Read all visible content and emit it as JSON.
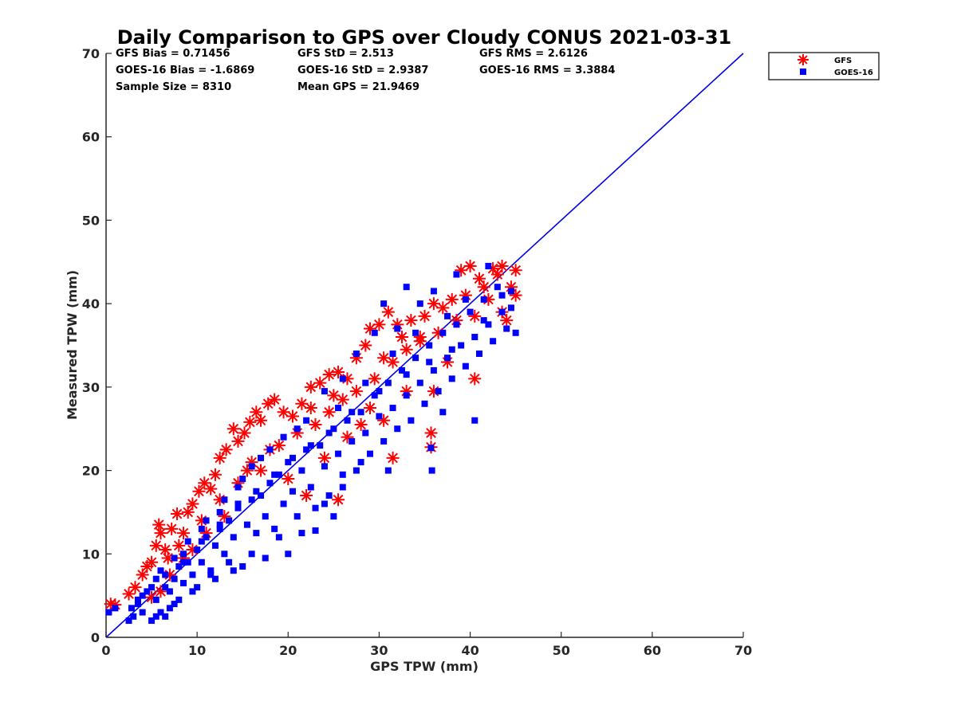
{
  "chart_data": {
    "type": "scatter",
    "title": "Daily Comparison to GPS over Cloudy CONUS 2021-03-31",
    "xlabel": "GPS TPW (mm)",
    "ylabel": "Measured TPW (mm)",
    "xlim": [
      0,
      70
    ],
    "ylim": [
      0,
      70
    ],
    "xticks": [
      "0",
      "10",
      "20",
      "30",
      "40",
      "50",
      "60",
      "70"
    ],
    "yticks": [
      "0",
      "10",
      "20",
      "30",
      "40",
      "50",
      "60",
      "70"
    ],
    "grid": false,
    "legend_position": "outside top-right",
    "reference_line": {
      "x": [
        0,
        70
      ],
      "y": [
        0,
        70
      ],
      "color": "#0000e6"
    },
    "stats": [
      {
        "text": "GFS Bias = 0.71456"
      },
      {
        "text": "GFS StD = 2.513"
      },
      {
        "text": "GFS RMS = 2.6126"
      },
      {
        "text": "GOES-16 Bias = -1.6869"
      },
      {
        "text": "GOES-16 StD = 2.9387"
      },
      {
        "text": "GOES-16 RMS = 3.3884"
      },
      {
        "text": "Sample Size = 8310"
      },
      {
        "text": "Mean GPS = 21.9469"
      }
    ],
    "series": [
      {
        "name": "GFS",
        "marker": "asterisk",
        "color": "#ff0000",
        "points": [
          [
            0.5,
            4.0
          ],
          [
            1.0,
            3.9
          ],
          [
            2.5,
            5.2
          ],
          [
            3.2,
            6.0
          ],
          [
            4.0,
            7.5
          ],
          [
            4.5,
            8.5
          ],
          [
            5.0,
            9.0
          ],
          [
            5.5,
            11.0
          ],
          [
            5.8,
            13.5
          ],
          [
            6.0,
            12.5
          ],
          [
            6.5,
            10.5
          ],
          [
            7.2,
            13.0
          ],
          [
            7.8,
            14.8
          ],
          [
            8.5,
            12.5
          ],
          [
            9.0,
            15.0
          ],
          [
            9.5,
            16.0
          ],
          [
            10.2,
            17.5
          ],
          [
            10.8,
            18.5
          ],
          [
            11.5,
            17.8
          ],
          [
            12.0,
            19.5
          ],
          [
            12.5,
            21.5
          ],
          [
            13.2,
            22.5
          ],
          [
            14.0,
            25.0
          ],
          [
            14.5,
            23.5
          ],
          [
            15.2,
            24.5
          ],
          [
            15.8,
            25.8
          ],
          [
            16.5,
            27.0
          ],
          [
            17.0,
            26.0
          ],
          [
            17.8,
            28.0
          ],
          [
            18.5,
            28.5
          ],
          [
            19.5,
            27.0
          ],
          [
            20.5,
            26.5
          ],
          [
            21.5,
            28.0
          ],
          [
            22.5,
            30.0
          ],
          [
            23.5,
            30.5
          ],
          [
            24.5,
            31.5
          ],
          [
            25.5,
            31.8
          ],
          [
            26.5,
            31.0
          ],
          [
            27.5,
            33.5
          ],
          [
            28.5,
            35.0
          ],
          [
            29.0,
            37.0
          ],
          [
            30.0,
            37.5
          ],
          [
            31.0,
            39.0
          ],
          [
            32.0,
            37.5
          ],
          [
            33.5,
            38.0
          ],
          [
            34.5,
            36.0
          ],
          [
            35.0,
            38.5
          ],
          [
            36.0,
            40.0
          ],
          [
            37.0,
            39.5
          ],
          [
            38.0,
            40.5
          ],
          [
            39.0,
            44.0
          ],
          [
            40.0,
            44.5
          ],
          [
            41.0,
            43.0
          ],
          [
            42.5,
            44.2
          ],
          [
            43.5,
            44.5
          ],
          [
            44.5,
            42.0
          ],
          [
            45.0,
            44.0
          ],
          [
            45.0,
            41.0
          ],
          [
            40.5,
            31.0
          ],
          [
            36.0,
            29.5
          ],
          [
            35.7,
            24.5
          ],
          [
            35.7,
            22.8
          ],
          [
            31.5,
            21.5
          ],
          [
            29.0,
            27.5
          ],
          [
            26.5,
            24.0
          ],
          [
            24.0,
            21.5
          ],
          [
            22.0,
            17.0
          ],
          [
            20.0,
            19.0
          ],
          [
            25.5,
            16.5
          ],
          [
            17.0,
            20.0
          ],
          [
            13.0,
            14.5
          ],
          [
            11.0,
            12.5
          ],
          [
            9.5,
            10.5
          ],
          [
            8.5,
            9.5
          ],
          [
            7.0,
            7.5
          ],
          [
            6.0,
            5.5
          ],
          [
            5.0,
            4.8
          ],
          [
            18.0,
            22.5
          ],
          [
            16.0,
            21.0
          ],
          [
            19.0,
            23.0
          ],
          [
            21.0,
            24.5
          ],
          [
            23.0,
            25.5
          ],
          [
            24.5,
            27.0
          ],
          [
            26.0,
            28.5
          ],
          [
            27.5,
            29.5
          ],
          [
            29.5,
            31.0
          ],
          [
            31.5,
            33.0
          ],
          [
            33.0,
            34.5
          ],
          [
            34.5,
            35.5
          ],
          [
            36.5,
            36.5
          ],
          [
            38.5,
            38.0
          ],
          [
            40.5,
            38.5
          ],
          [
            42.0,
            40.5
          ],
          [
            43.5,
            39.0
          ],
          [
            44.0,
            38.0
          ],
          [
            37.5,
            33.0
          ],
          [
            33.0,
            29.5
          ],
          [
            30.5,
            26.0
          ],
          [
            28.0,
            25.5
          ],
          [
            14.5,
            18.5
          ],
          [
            12.5,
            16.5
          ],
          [
            10.5,
            14.0
          ],
          [
            8.0,
            11.0
          ],
          [
            6.8,
            9.5
          ],
          [
            15.5,
            20.0
          ],
          [
            22.5,
            27.5
          ],
          [
            25.0,
            29.0
          ],
          [
            30.5,
            33.5
          ],
          [
            32.5,
            36.0
          ],
          [
            39.5,
            41.0
          ],
          [
            41.5,
            42.0
          ],
          [
            43.0,
            43.5
          ]
        ]
      },
      {
        "name": "GOES-16",
        "marker": "square",
        "color": "#0000ff",
        "points": [
          [
            0.3,
            3.0
          ],
          [
            1.0,
            3.5
          ],
          [
            2.5,
            2.0
          ],
          [
            3.0,
            2.5
          ],
          [
            3.5,
            4.0
          ],
          [
            4.0,
            3.0
          ],
          [
            4.5,
            5.5
          ],
          [
            5.0,
            2.0
          ],
          [
            5.5,
            4.5
          ],
          [
            6.0,
            3.0
          ],
          [
            6.5,
            6.0
          ],
          [
            7.0,
            5.5
          ],
          [
            7.5,
            7.0
          ],
          [
            8.0,
            8.5
          ],
          [
            8.5,
            6.5
          ],
          [
            9.0,
            9.0
          ],
          [
            9.5,
            7.5
          ],
          [
            10.0,
            10.5
          ],
          [
            10.5,
            9.0
          ],
          [
            11.0,
            12.0
          ],
          [
            11.5,
            8.0
          ],
          [
            12.0,
            11.0
          ],
          [
            12.5,
            13.0
          ],
          [
            13.0,
            10.0
          ],
          [
            13.5,
            14.0
          ],
          [
            14.0,
            12.0
          ],
          [
            14.5,
            15.5
          ],
          [
            15.0,
            8.5
          ],
          [
            15.5,
            13.5
          ],
          [
            16.0,
            16.5
          ],
          [
            16.5,
            12.5
          ],
          [
            17.0,
            17.0
          ],
          [
            17.5,
            14.5
          ],
          [
            18.0,
            18.5
          ],
          [
            18.5,
            13.0
          ],
          [
            19.0,
            19.5
          ],
          [
            19.5,
            16.0
          ],
          [
            20.0,
            21.0
          ],
          [
            20.5,
            17.5
          ],
          [
            21.0,
            14.5
          ],
          [
            21.5,
            20.0
          ],
          [
            22.0,
            22.5
          ],
          [
            22.5,
            18.0
          ],
          [
            23.0,
            15.5
          ],
          [
            23.5,
            23.0
          ],
          [
            24.0,
            20.5
          ],
          [
            24.5,
            17.0
          ],
          [
            25.0,
            25.0
          ],
          [
            25.5,
            22.0
          ],
          [
            26.0,
            19.5
          ],
          [
            26.5,
            26.0
          ],
          [
            27.0,
            23.5
          ],
          [
            27.5,
            20.0
          ],
          [
            28.0,
            27.0
          ],
          [
            28.5,
            24.5
          ],
          [
            29.0,
            22.0
          ],
          [
            29.5,
            29.0
          ],
          [
            30.0,
            26.5
          ],
          [
            30.5,
            23.5
          ],
          [
            31.0,
            30.5
          ],
          [
            31.5,
            27.5
          ],
          [
            32.0,
            25.0
          ],
          [
            32.5,
            32.0
          ],
          [
            33.0,
            29.0
          ],
          [
            33.5,
            26.0
          ],
          [
            34.0,
            33.5
          ],
          [
            34.5,
            30.5
          ],
          [
            35.0,
            28.0
          ],
          [
            35.5,
            35.0
          ],
          [
            36.0,
            32.0
          ],
          [
            36.5,
            29.5
          ],
          [
            37.0,
            36.5
          ],
          [
            37.5,
            33.5
          ],
          [
            38.0,
            31.0
          ],
          [
            38.5,
            37.5
          ],
          [
            39.0,
            35.0
          ],
          [
            39.5,
            32.5
          ],
          [
            40.0,
            39.0
          ],
          [
            40.5,
            36.0
          ],
          [
            41.0,
            34.0
          ],
          [
            41.5,
            40.5
          ],
          [
            42.0,
            37.5
          ],
          [
            42.5,
            35.5
          ],
          [
            43.0,
            42.0
          ],
          [
            43.5,
            39.0
          ],
          [
            44.0,
            37.0
          ],
          [
            44.5,
            41.5
          ],
          [
            45.0,
            36.5
          ],
          [
            37.0,
            27.0
          ],
          [
            40.5,
            26.0
          ],
          [
            35.8,
            20.0
          ],
          [
            35.7,
            22.7
          ],
          [
            31.0,
            20.0
          ],
          [
            28.0,
            21.0
          ],
          [
            25.0,
            14.5
          ],
          [
            23.0,
            12.8
          ],
          [
            20.0,
            10.0
          ],
          [
            17.5,
            9.5
          ],
          [
            14.0,
            8.0
          ],
          [
            12.0,
            7.0
          ],
          [
            10.0,
            6.0
          ],
          [
            8.0,
            4.5
          ],
          [
            6.5,
            2.5
          ],
          [
            7.0,
            3.5
          ],
          [
            33.0,
            42.0
          ],
          [
            30.5,
            40.0
          ],
          [
            29.5,
            36.5
          ],
          [
            27.5,
            34.0
          ],
          [
            24.0,
            29.5
          ],
          [
            22.0,
            26.0
          ],
          [
            19.5,
            24.0
          ],
          [
            17.0,
            21.5
          ],
          [
            15.0,
            19.0
          ],
          [
            13.0,
            16.5
          ],
          [
            11.0,
            14.0
          ],
          [
            9.0,
            11.5
          ],
          [
            7.5,
            9.5
          ],
          [
            5.5,
            7.0
          ],
          [
            4.0,
            5.0
          ],
          [
            2.8,
            3.5
          ],
          [
            42.0,
            44.5
          ],
          [
            38.5,
            43.5
          ],
          [
            36.0,
            41.5
          ],
          [
            34.5,
            40.0
          ],
          [
            32.0,
            37.0
          ],
          [
            26.0,
            31.0
          ],
          [
            21.0,
            25.0
          ],
          [
            18.0,
            22.5
          ],
          [
            16.0,
            20.5
          ],
          [
            14.5,
            18.0
          ],
          [
            12.5,
            15.0
          ],
          [
            10.5,
            13.0
          ],
          [
            8.5,
            10.0
          ],
          [
            6.0,
            8.0
          ],
          [
            25.5,
            27.5
          ],
          [
            28.5,
            30.5
          ],
          [
            31.5,
            34.0
          ],
          [
            34.0,
            36.5
          ],
          [
            37.5,
            38.5
          ],
          [
            39.5,
            40.5
          ],
          [
            43.5,
            41.0
          ],
          [
            44.5,
            39.5
          ],
          [
            41.5,
            38.0
          ],
          [
            38.0,
            34.5
          ],
          [
            35.5,
            33.0
          ],
          [
            33.0,
            31.5
          ],
          [
            30.0,
            29.5
          ],
          [
            27.0,
            27.0
          ],
          [
            24.5,
            24.5
          ],
          [
            22.5,
            23.0
          ],
          [
            20.5,
            21.5
          ],
          [
            18.5,
            19.5
          ],
          [
            16.5,
            17.5
          ],
          [
            14.5,
            16.0
          ],
          [
            12.5,
            13.5
          ],
          [
            10.5,
            11.5
          ],
          [
            8.5,
            9.0
          ],
          [
            6.5,
            7.5
          ],
          [
            5.0,
            6.0
          ],
          [
            3.5,
            4.5
          ],
          [
            26.0,
            18.0
          ],
          [
            24.0,
            16.0
          ],
          [
            21.5,
            12.5
          ],
          [
            19.0,
            12.0
          ],
          [
            16.0,
            10.0
          ],
          [
            13.5,
            9.0
          ],
          [
            11.5,
            7.5
          ],
          [
            9.5,
            5.5
          ],
          [
            7.5,
            4.0
          ],
          [
            5.5,
            2.5
          ]
        ]
      }
    ]
  }
}
